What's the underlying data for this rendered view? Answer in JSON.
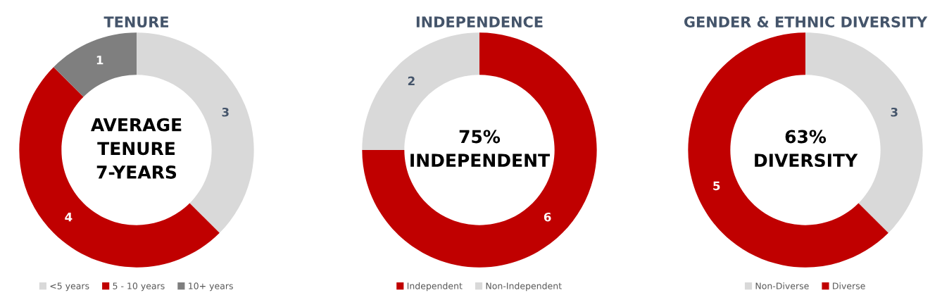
{
  "chart_data": [
    {
      "type": "donut",
      "title": "TENURE",
      "categories": [
        "<5 years",
        "5 - 10 years",
        "10+ years"
      ],
      "values": [
        3,
        4,
        1
      ],
      "colors": [
        "#d9d9d9",
        "#c00000",
        "#7f7f7f"
      ],
      "data_labels": true,
      "legend": "bottom",
      "annotations": [
        "AVERAGE\nTENURE\n7-YEARS"
      ]
    },
    {
      "type": "donut",
      "title": "INDEPENDENCE",
      "categories": [
        "Independent",
        "Non-Independent"
      ],
      "values": [
        6,
        2
      ],
      "colors": [
        "#c00000",
        "#d9d9d9"
      ],
      "data_labels": true,
      "legend": "bottom",
      "annotations": [
        "75%\nINDEPENDENT"
      ]
    },
    {
      "type": "donut",
      "title": "GENDER & ETHNIC DIVERSITY",
      "categories": [
        "Non-Diverse",
        "Diverse"
      ],
      "values": [
        3,
        5
      ],
      "colors": [
        "#d9d9d9",
        "#c00000"
      ],
      "data_labels": true,
      "legend": "bottom",
      "annotations": [
        "63%\nDIVERSITY"
      ]
    }
  ]
}
